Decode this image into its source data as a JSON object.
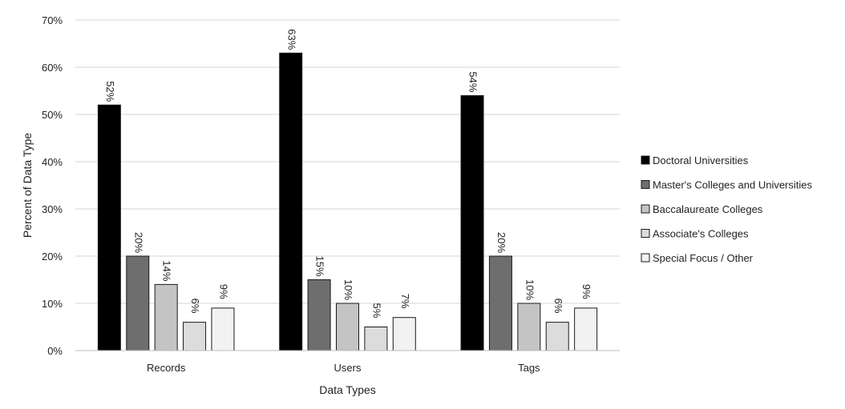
{
  "chart_data": {
    "type": "bar",
    "title": "",
    "xlabel": "Data Types",
    "ylabel": "Percent of Data Type",
    "categories": [
      "Records",
      "Users",
      "Tags"
    ],
    "ylim": [
      0,
      70
    ],
    "yticks": [
      0,
      10,
      20,
      30,
      40,
      50,
      60,
      70
    ],
    "ytick_labels": [
      "0%",
      "10%",
      "20%",
      "30%",
      "40%",
      "50%",
      "60%",
      "70%"
    ],
    "grid": true,
    "legend_position": "right",
    "series": [
      {
        "name": "Doctoral Universities",
        "color": "#000000",
        "values": [
          52,
          63,
          54
        ],
        "labels": [
          "52%",
          "63%",
          "54%"
        ]
      },
      {
        "name": "Master's Colleges and Universities",
        "color": "#6e6e6e",
        "values": [
          20,
          15,
          20
        ],
        "labels": [
          "20%",
          "15%",
          "20%"
        ]
      },
      {
        "name": "Baccalaureate Colleges",
        "color": "#c4c4c4",
        "values": [
          14,
          10,
          10
        ],
        "labels": [
          "14%",
          "10%",
          "10%"
        ]
      },
      {
        "name": "Associate's Colleges",
        "color": "#dcdcdc",
        "values": [
          6,
          5,
          6
        ],
        "labels": [
          "6%",
          "5%",
          "6%"
        ]
      },
      {
        "name": "Special Focus / Other",
        "color": "#f2f2f2",
        "values": [
          9,
          7,
          9
        ],
        "labels": [
          "9%",
          "7%",
          "9%"
        ]
      }
    ]
  }
}
